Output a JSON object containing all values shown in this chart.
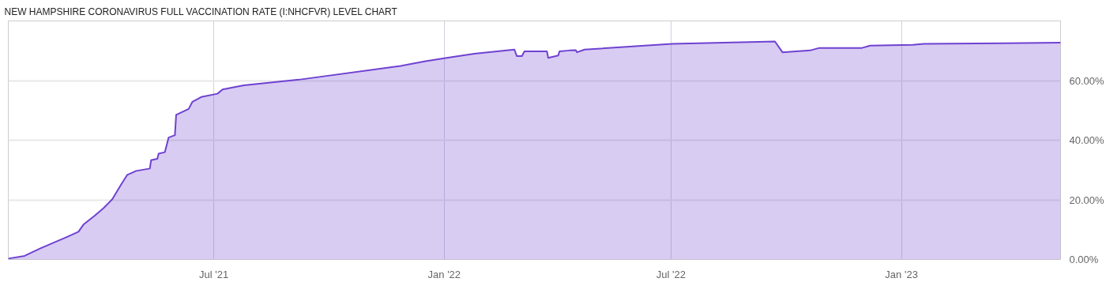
{
  "chart_data": {
    "type": "area",
    "title": "NEW HAMPSHIRE CORONAVIRUS FULL VACCINATION RATE (I:NHCFVR) LEVEL CHART",
    "x": [
      "2021-01-18",
      "2021-01-31",
      "2021-02-13",
      "2021-03-06",
      "2021-03-15",
      "2021-03-19",
      "2021-03-28",
      "2021-04-04",
      "2021-04-11",
      "2021-04-18",
      "2021-04-23",
      "2021-04-30",
      "2021-05-11",
      "2021-05-12",
      "2021-05-17",
      "2021-05-18",
      "2021-05-23",
      "2021-05-26",
      "2021-05-31",
      "2021-06-01",
      "2021-06-11",
      "2021-06-14",
      "2021-06-21",
      "2021-07-04",
      "2021-07-08",
      "2021-07-25",
      "2021-09-07",
      "2021-11-27",
      "2021-12-17",
      "2022-01-03",
      "2022-01-25",
      "2022-02-26",
      "2022-02-28",
      "2022-03-04",
      "2022-03-06",
      "2022-03-24",
      "2022-03-25",
      "2022-04-02",
      "2022-04-03",
      "2022-04-11",
      "2022-04-16",
      "2022-04-17",
      "2022-04-23",
      "2022-07-02",
      "2022-09-22",
      "2022-09-28",
      "2022-10-20",
      "2022-10-27",
      "2022-11-30",
      "2022-12-07",
      "2023-01-10",
      "2023-01-19",
      "2023-05-08"
    ],
    "series": [
      {
        "color": "#6f42d1",
        "values": [
          0.3,
          1.2,
          3.8,
          7.6,
          9.3,
          11.7,
          14.7,
          17.2,
          20.2,
          25.1,
          28.4,
          29.7,
          30.5,
          33.3,
          33.8,
          35.5,
          36.0,
          40.9,
          41.7,
          48.5,
          50.5,
          52.9,
          54.5,
          55.6,
          57.0,
          58.4,
          60.3,
          64.9,
          66.5,
          67.6,
          69.0,
          70.4,
          68.2,
          68.2,
          69.8,
          69.8,
          67.6,
          68.4,
          69.8,
          70.1,
          70.2,
          69.5,
          70.4,
          72.3,
          73.1,
          69.5,
          70.1,
          70.9,
          70.9,
          71.7,
          72.0,
          72.3,
          72.7
        ]
      }
    ],
    "xlim": [
      "2021-01-18",
      "2023-05-08"
    ],
    "xticks": [
      {
        "value": "2021-07-01",
        "label": "Jul '21"
      },
      {
        "value": "2022-01-01",
        "label": "Jan '22"
      },
      {
        "value": "2022-07-01",
        "label": "Jul '22"
      },
      {
        "value": "2023-01-01",
        "label": "Jan '23"
      }
    ],
    "ylim": [
      0,
      80
    ],
    "yticks": [
      {
        "value": 0,
        "label": "0.00%"
      },
      {
        "value": 20,
        "label": "20.00%"
      },
      {
        "value": 40,
        "label": "40.00%"
      },
      {
        "value": 60,
        "label": "60.00%"
      }
    ],
    "grid": true,
    "line_style": "solid",
    "marker": "none"
  }
}
